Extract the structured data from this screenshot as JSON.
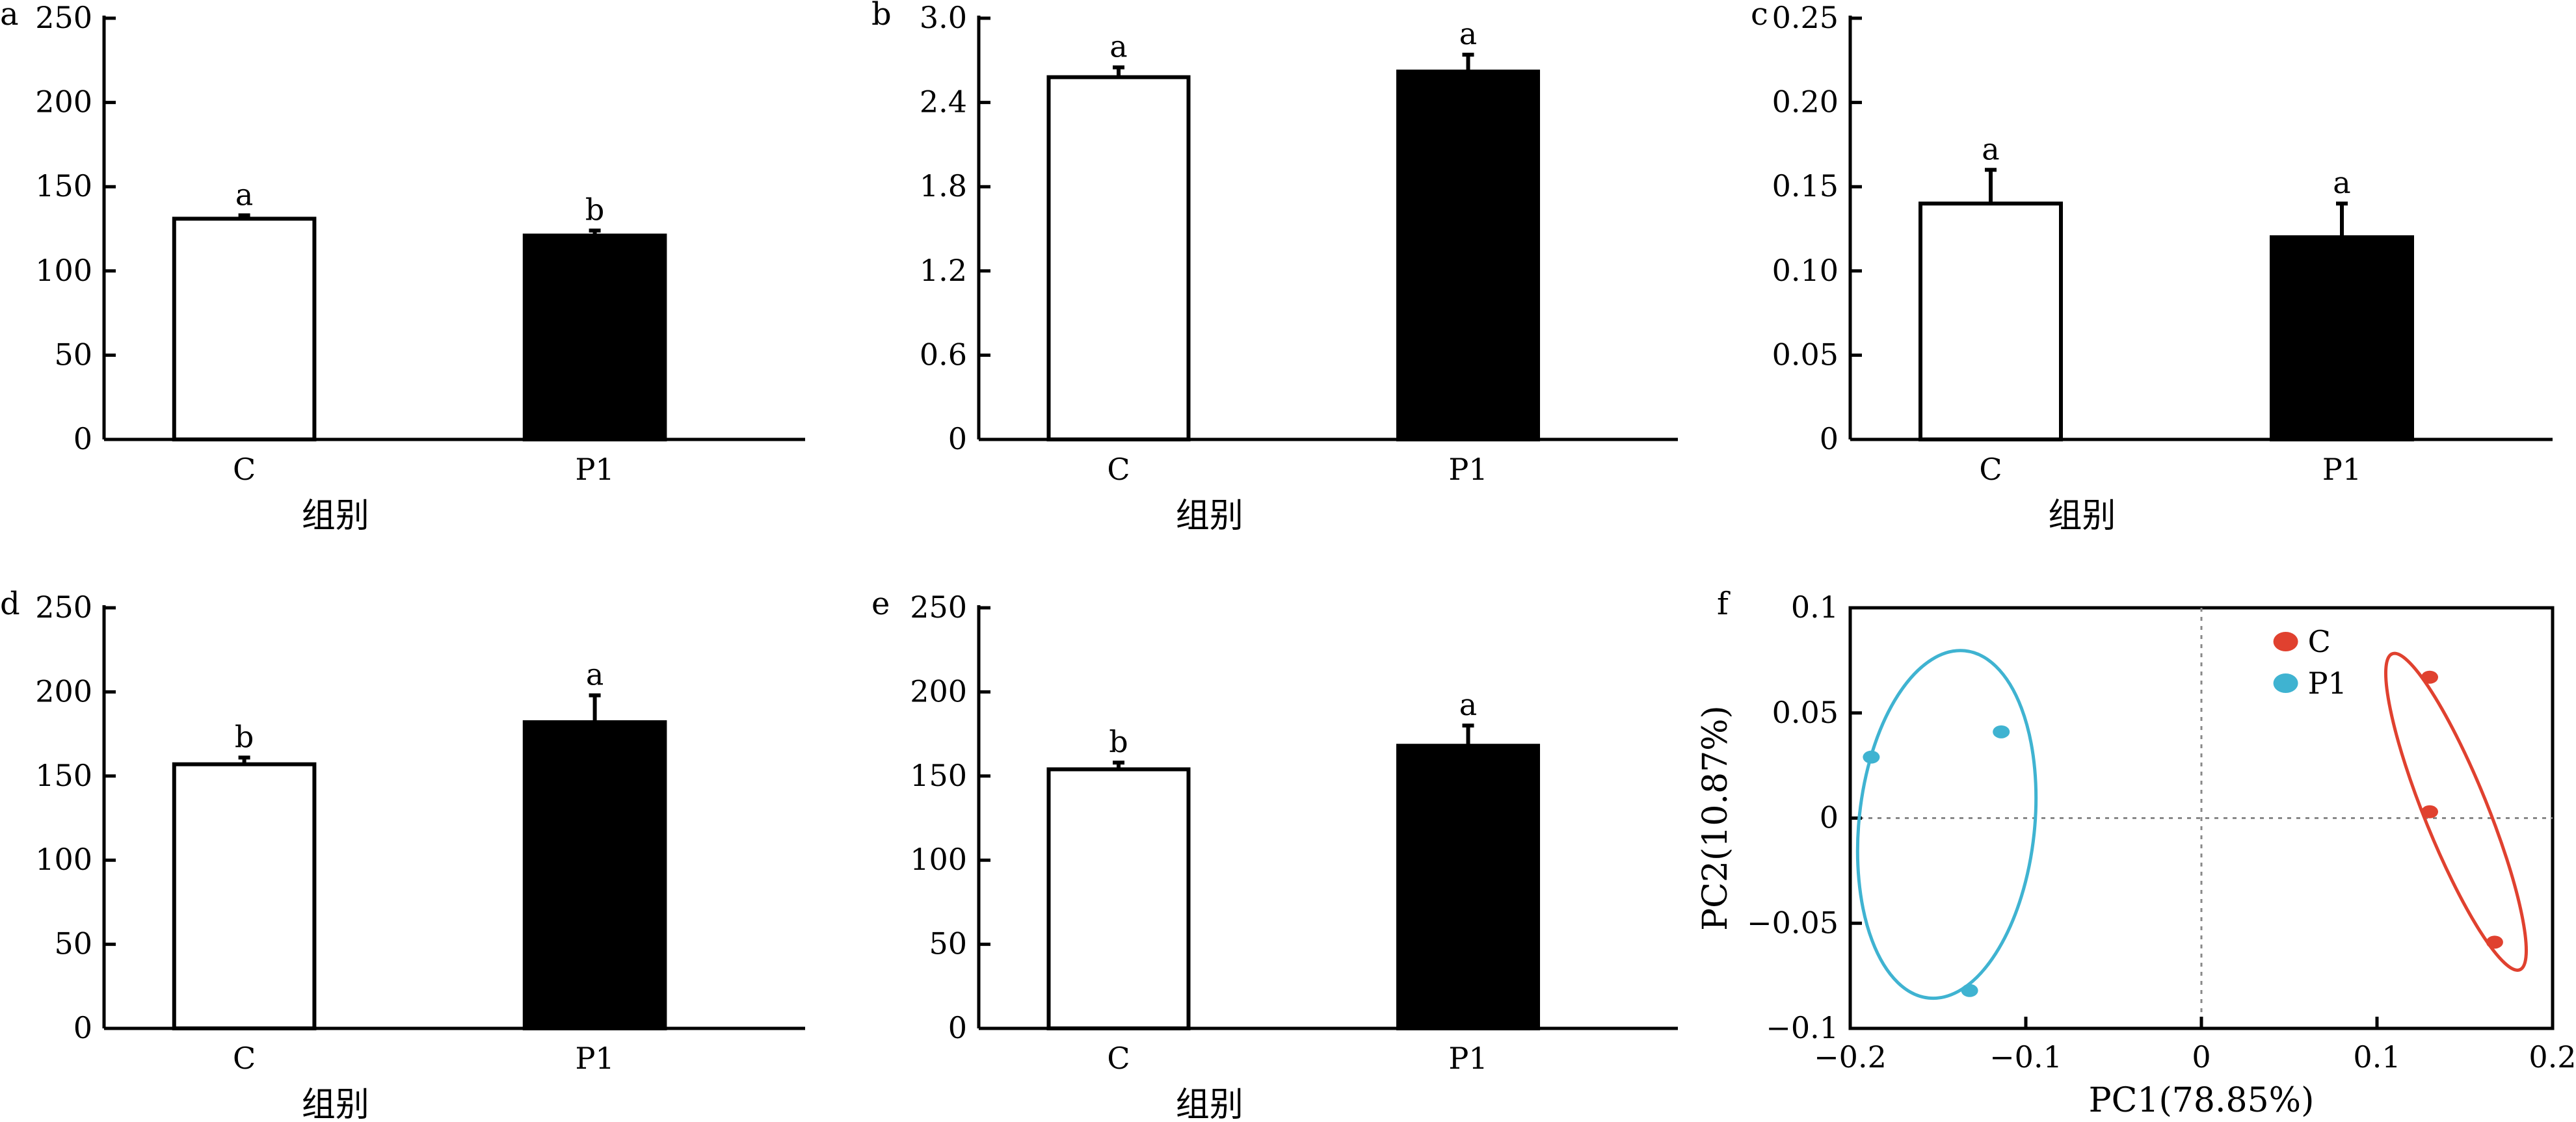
{
  "chart_data": [
    {
      "panel": "a",
      "type": "bar",
      "categories": [
        "C",
        "P1"
      ],
      "values": [
        131,
        121
      ],
      "errors": [
        2,
        3
      ],
      "significance": [
        "a",
        "b"
      ],
      "xlabel": "组别",
      "ylim": [
        0,
        250
      ],
      "yticks": [
        "0",
        "50",
        "100",
        "150",
        "200",
        "250"
      ],
      "bar_colors": [
        "#ffffff",
        "#000000"
      ]
    },
    {
      "panel": "b",
      "type": "bar",
      "categories": [
        "C",
        "P1"
      ],
      "values": [
        2.58,
        2.62
      ],
      "errors": [
        0.07,
        0.12
      ],
      "significance": [
        "a",
        "a"
      ],
      "xlabel": "组别",
      "ylim": [
        0,
        3.0
      ],
      "yticks": [
        "0",
        "0.6",
        "1.2",
        "1.8",
        "2.4",
        "3.0"
      ],
      "bar_colors": [
        "#ffffff",
        "#000000"
      ]
    },
    {
      "panel": "c",
      "type": "bar",
      "categories": [
        "C",
        "P1"
      ],
      "values": [
        0.14,
        0.12
      ],
      "errors": [
        0.02,
        0.02
      ],
      "significance": [
        "a",
        "a"
      ],
      "xlabel": "组别",
      "ylim": [
        0,
        0.25
      ],
      "yticks": [
        "0",
        "0.05",
        "0.10",
        "0.15",
        "0.20",
        "0.25"
      ],
      "bar_colors": [
        "#ffffff",
        "#000000"
      ]
    },
    {
      "panel": "d",
      "type": "bar",
      "categories": [
        "C",
        "P1"
      ],
      "values": [
        157,
        182
      ],
      "errors": [
        4,
        16
      ],
      "significance": [
        "b",
        "a"
      ],
      "xlabel": "组别",
      "ylim": [
        0,
        250
      ],
      "yticks": [
        "0",
        "50",
        "100",
        "150",
        "200",
        "250"
      ],
      "bar_colors": [
        "#ffffff",
        "#000000"
      ]
    },
    {
      "panel": "e",
      "type": "bar",
      "categories": [
        "C",
        "P1"
      ],
      "values": [
        154,
        168
      ],
      "errors": [
        4,
        12
      ],
      "significance": [
        "b",
        "a"
      ],
      "xlabel": "组别",
      "ylim": [
        0,
        250
      ],
      "yticks": [
        "0",
        "50",
        "100",
        "150",
        "200",
        "250"
      ],
      "bar_colors": [
        "#ffffff",
        "#000000"
      ]
    },
    {
      "panel": "f",
      "type": "scatter",
      "xlabel": "PC1(78.85%)",
      "ylabel": "PC2(10.87%)",
      "xlim": [
        -0.2,
        0.2
      ],
      "ylim": [
        -0.1,
        0.1
      ],
      "xticks": [
        "−0.2",
        "−0.1",
        "0",
        "0.1",
        "0.2"
      ],
      "yticks": [
        "−0.1",
        "−0.05",
        "0",
        "0.05",
        "0.1"
      ],
      "legend_position": "top-right",
      "series": [
        {
          "name": "C",
          "color": "#e0412f",
          "points": [
            [
              0.13,
              0.067
            ],
            [
              0.13,
              0.003
            ],
            [
              0.167,
              -0.059
            ]
          ],
          "ellipse": {
            "cx": 0.145,
            "cy": 0.003,
            "rx": 0.018,
            "ry": 0.081,
            "angle_deg": -22
          }
        },
        {
          "name": "P1",
          "color": "#3fb3d1",
          "points": [
            [
              -0.114,
              0.041
            ],
            [
              -0.188,
              0.029
            ],
            [
              -0.132,
              -0.082
            ]
          ],
          "ellipse": {
            "cx": -0.145,
            "cy": -0.003,
            "rx": 0.05,
            "ry": 0.083,
            "angle_deg": 6
          }
        }
      ]
    }
  ]
}
